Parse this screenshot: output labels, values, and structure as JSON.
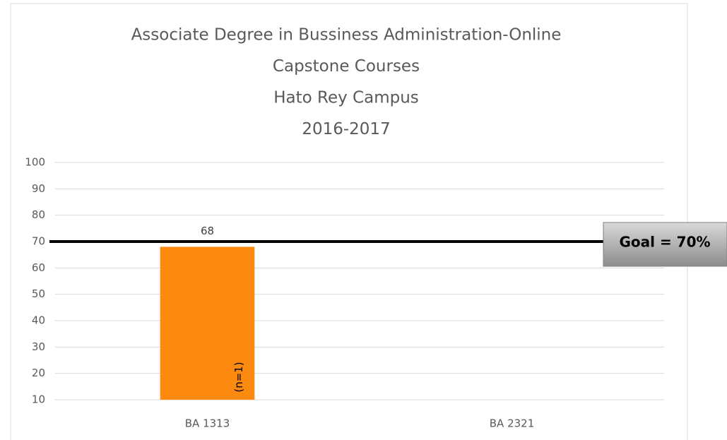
{
  "chart_data": {
    "type": "bar",
    "title": [
      "Associate Degree in Bussiness Administration-Online",
      "Capstone Courses",
      "Hato Rey Campus",
      "2016-2017"
    ],
    "categories": [
      "BA 1313",
      "BA 2321"
    ],
    "values": [
      68,
      null
    ],
    "color": "#fd8a10",
    "ylim": [
      10,
      100
    ],
    "yticks": [
      10,
      20,
      30,
      40,
      50,
      60,
      70,
      80,
      90,
      100
    ],
    "grid": true,
    "annotations": [
      "(n=1)"
    ],
    "goal": {
      "value": 70,
      "label": "Goal = 70%"
    }
  }
}
